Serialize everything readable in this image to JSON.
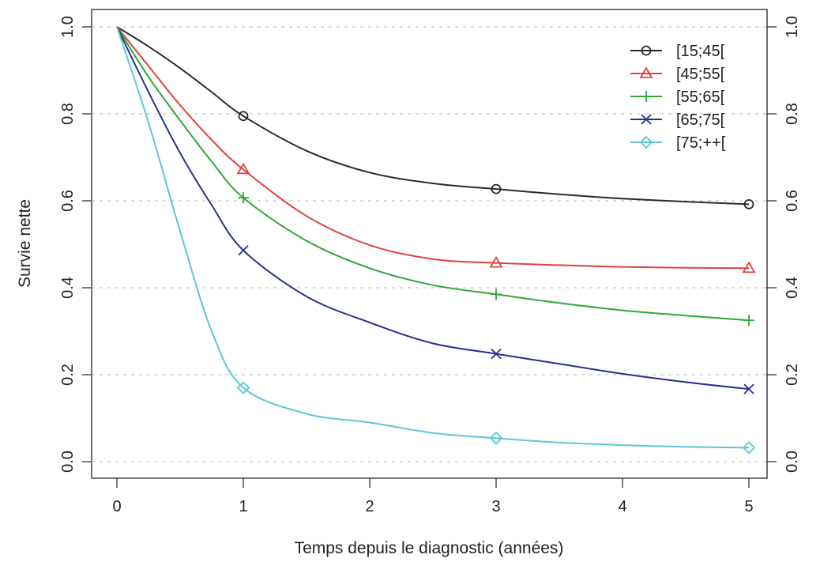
{
  "chart_data": {
    "type": "line",
    "title": "",
    "xlabel": "Temps depuis le diagnostic (années)",
    "ylabel": "Survie nette",
    "xlim": [
      0,
      5
    ],
    "ylim": [
      0,
      1
    ],
    "x_ticks": [
      0,
      1,
      2,
      3,
      4,
      5
    ],
    "y_ticks": [
      0.0,
      0.2,
      0.4,
      0.6,
      0.8,
      1.0
    ],
    "x_tick_labels": [
      "0",
      "1",
      "2",
      "3",
      "4",
      "5"
    ],
    "y_tick_labels": [
      "0.0",
      "0.2",
      "0.4",
      "0.6",
      "0.8",
      "1.0"
    ],
    "grid": "horizontal dashed",
    "legend_position": "top-right",
    "series": [
      {
        "name": "[15;45[",
        "color": "#2b2b2b",
        "marker": "circle",
        "curve": [
          [
            0,
            1.0
          ],
          [
            0.25,
            0.955
          ],
          [
            0.5,
            0.905
          ],
          [
            0.75,
            0.85
          ],
          [
            1,
            0.795
          ],
          [
            1.5,
            0.715
          ],
          [
            2,
            0.665
          ],
          [
            2.5,
            0.64
          ],
          [
            3,
            0.627
          ],
          [
            3.5,
            0.615
          ],
          [
            4,
            0.605
          ],
          [
            4.5,
            0.598
          ],
          [
            5,
            0.592
          ]
        ],
        "points": [
          [
            1,
            0.795
          ],
          [
            3,
            0.627
          ],
          [
            5,
            0.592
          ]
        ]
      },
      {
        "name": "[45;55[",
        "color": "#e0423c",
        "marker": "triangle",
        "curve": [
          [
            0,
            1.0
          ],
          [
            0.25,
            0.91
          ],
          [
            0.5,
            0.82
          ],
          [
            0.75,
            0.74
          ],
          [
            1,
            0.672
          ],
          [
            1.5,
            0.565
          ],
          [
            2,
            0.498
          ],
          [
            2.5,
            0.466
          ],
          [
            3,
            0.457
          ],
          [
            3.5,
            0.452
          ],
          [
            4,
            0.448
          ],
          [
            4.5,
            0.446
          ],
          [
            5,
            0.445
          ]
        ],
        "points": [
          [
            1,
            0.672
          ],
          [
            3,
            0.457
          ],
          [
            5,
            0.445
          ]
        ]
      },
      {
        "name": "[55;65[",
        "color": "#2ea836",
        "marker": "plus",
        "curve": [
          [
            0,
            1.0
          ],
          [
            0.25,
            0.885
          ],
          [
            0.5,
            0.785
          ],
          [
            0.75,
            0.69
          ],
          [
            1,
            0.607
          ],
          [
            1.5,
            0.508
          ],
          [
            2,
            0.445
          ],
          [
            2.5,
            0.406
          ],
          [
            3,
            0.385
          ],
          [
            3.5,
            0.365
          ],
          [
            4,
            0.348
          ],
          [
            4.5,
            0.336
          ],
          [
            5,
            0.325
          ]
        ],
        "points": [
          [
            1,
            0.607
          ],
          [
            3,
            0.385
          ],
          [
            5,
            0.325
          ]
        ]
      },
      {
        "name": "[65;75[",
        "color": "#26318f",
        "marker": "cross",
        "curve": [
          [
            0,
            1.0
          ],
          [
            0.25,
            0.85
          ],
          [
            0.5,
            0.71
          ],
          [
            0.75,
            0.59
          ],
          [
            1,
            0.486
          ],
          [
            1.5,
            0.38
          ],
          [
            2,
            0.32
          ],
          [
            2.5,
            0.272
          ],
          [
            3,
            0.248
          ],
          [
            3.5,
            0.225
          ],
          [
            4,
            0.202
          ],
          [
            4.5,
            0.183
          ],
          [
            5,
            0.167
          ]
        ],
        "points": [
          [
            1,
            0.486
          ],
          [
            3,
            0.248
          ],
          [
            5,
            0.167
          ]
        ]
      },
      {
        "name": "[75;++[",
        "color": "#5cc6d6",
        "marker": "diamond",
        "curve": [
          [
            0,
            1.0
          ],
          [
            0.25,
            0.78
          ],
          [
            0.5,
            0.53
          ],
          [
            0.75,
            0.3
          ],
          [
            1,
            0.17
          ],
          [
            1.5,
            0.11
          ],
          [
            2,
            0.09
          ],
          [
            2.5,
            0.066
          ],
          [
            3,
            0.054
          ],
          [
            3.5,
            0.044
          ],
          [
            4,
            0.038
          ],
          [
            4.5,
            0.034
          ],
          [
            5,
            0.032
          ]
        ],
        "points": [
          [
            1,
            0.17
          ],
          [
            3,
            0.054
          ],
          [
            5,
            0.032
          ]
        ]
      }
    ]
  }
}
